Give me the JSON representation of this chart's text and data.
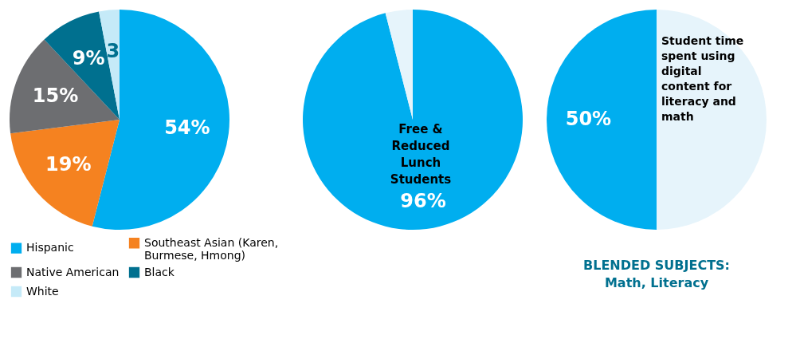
{
  "chart_data": [
    {
      "type": "pie",
      "categories": [
        "Hispanic",
        "Southeast Asian (Karen, Burmese, Hmong)",
        "Native American",
        "Black",
        "White"
      ],
      "values": [
        54,
        19,
        15,
        9,
        3
      ],
      "colors": [
        "#00aeef",
        "#f58220",
        "#6d6e71",
        "#00708f",
        "#c5eaf8"
      ],
      "value_labels": [
        "54%",
        "19%",
        "15%",
        "9%",
        "3"
      ],
      "legend": "bottom"
    },
    {
      "type": "pie",
      "categories": [
        null,
        null
      ],
      "values": [
        96,
        4
      ],
      "colors": [
        "#00aeef",
        "#e6f4fb"
      ],
      "value_labels": [
        "96%",
        null
      ],
      "annotations": [
        "Free & Reduced Lunch Students"
      ]
    },
    {
      "type": "pie",
      "categories": [
        null,
        null
      ],
      "values": [
        50,
        50
      ],
      "colors": [
        "#e6f4fb",
        "#00aeef"
      ],
      "value_labels": [
        null,
        "50%"
      ],
      "annotations": [
        "Student time spent using digital content for literacy and math",
        "BLENDED SUBJECTS:",
        "Math, Literacy"
      ]
    }
  ]
}
